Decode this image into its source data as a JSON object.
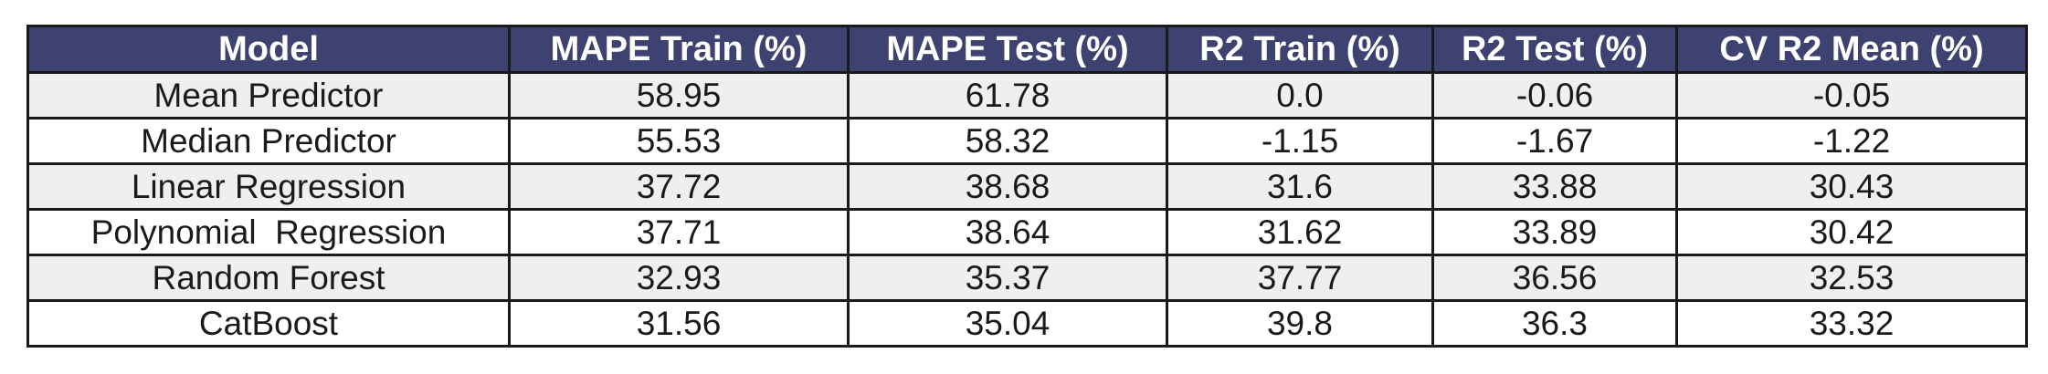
{
  "chart_data": {
    "type": "table",
    "columns": [
      "Model",
      "MAPE Train (%)",
      "MAPE Test (%)",
      "R2 Train (%)",
      "R2 Test (%)",
      "CV R2 Mean (%)"
    ],
    "rows": [
      [
        "Mean Predictor",
        "58.95",
        "61.78",
        "0.0",
        "-0.06",
        "-0.05"
      ],
      [
        "Median Predictor",
        "55.53",
        "58.32",
        "-1.15",
        "-1.67",
        "-1.22"
      ],
      [
        "Linear Regression",
        "37.72",
        "38.68",
        "31.6",
        "33.88",
        "30.43"
      ],
      [
        "Polynomial  Regression",
        "37.71",
        "38.64",
        "31.62",
        "33.89",
        "30.42"
      ],
      [
        "Random Forest",
        "32.93",
        "35.37",
        "37.77",
        "36.56",
        "32.53"
      ],
      [
        "CatBoost",
        "31.56",
        "35.04",
        "39.8",
        "36.3",
        "33.32"
      ]
    ]
  },
  "colors": {
    "header_background": "#3d4270",
    "header_text": "#ffffff",
    "stripe_background": "#efefef",
    "row_background": "#ffffff",
    "border": "#1a1a1a",
    "text": "#1a1a1a"
  }
}
